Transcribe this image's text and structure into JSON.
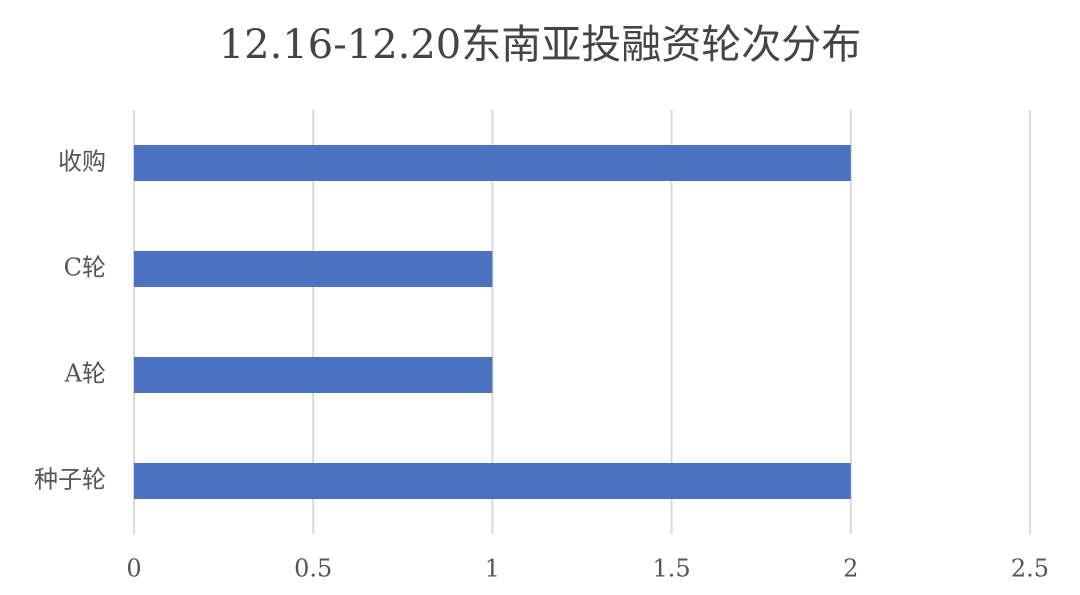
{
  "chart_data": {
    "type": "bar",
    "orientation": "horizontal",
    "title": "12.16-12.20东南亚投融资轮次分布",
    "categories": [
      "收购",
      "C轮",
      "A轮",
      "种子轮"
    ],
    "values": [
      2,
      1,
      1,
      2
    ],
    "color": "#4a72be",
    "xlim": [
      0,
      2.5
    ],
    "xticks": [
      0,
      0.5,
      1,
      1.5,
      2,
      2.5
    ],
    "grid": true
  }
}
